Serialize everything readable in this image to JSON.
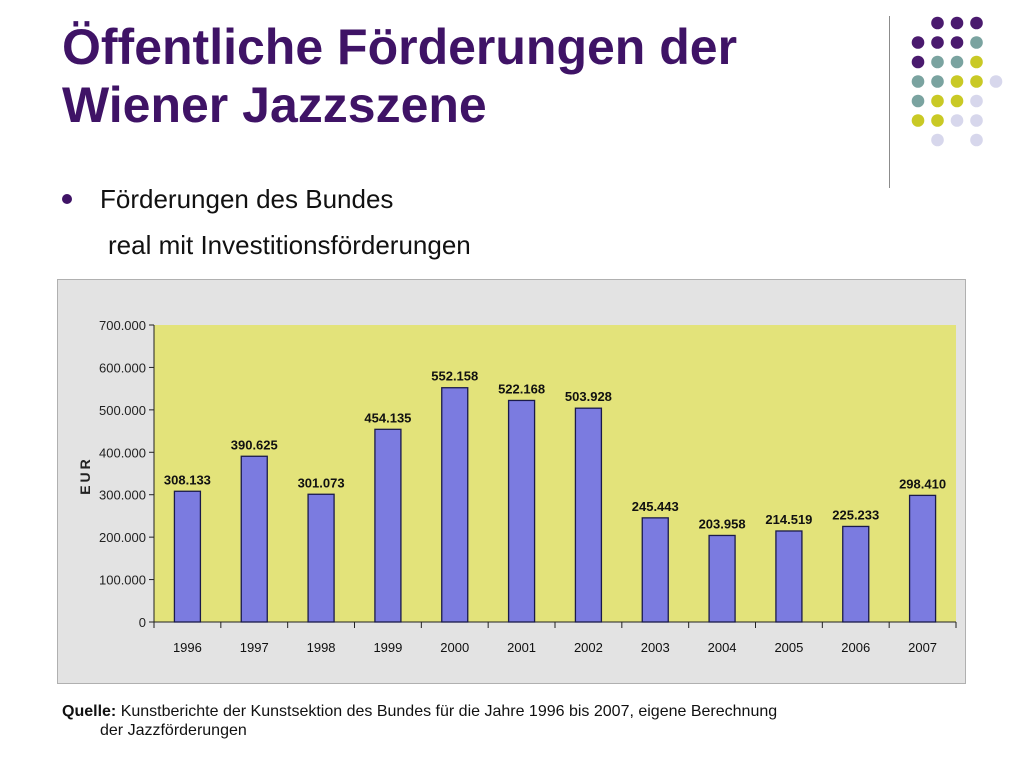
{
  "slide": {
    "title_line1": "Öffentliche Förderungen der",
    "title_line2": "Wiener Jazzszene",
    "bullet": "Förderungen des Bundes",
    "bullet_sub": "real mit Investitionsförderungen",
    "source_label": "Quelle:",
    "source_text": "Kunstberichte der Kunstsektion des Bundes für die Jahre 1996 bis 2007, eigene Berechnung",
    "source_text2": "der Jazzförderungen"
  },
  "colors": {
    "title": "#3f1366",
    "plot_bg": "#e3e37a",
    "bar_fill": "#7b7be0",
    "bar_stroke": "#1a1a4a",
    "dot_purple": "#4a1a6e",
    "dot_teal": "#7aa3a0",
    "dot_yellow": "#c9c925",
    "dot_lavender": "#d7d7ec"
  },
  "chart_data": {
    "type": "bar",
    "categories": [
      "1996",
      "1997",
      "1998",
      "1999",
      "2000",
      "2001",
      "2002",
      "2003",
      "2004",
      "2005",
      "2006",
      "2007"
    ],
    "values": [
      308133,
      390625,
      301073,
      454135,
      552158,
      522168,
      503928,
      245443,
      203958,
      214519,
      225233,
      298410
    ],
    "value_labels": [
      "308.133",
      "390.625",
      "301.073",
      "454.135",
      "552.158",
      "522.168",
      "503.928",
      "245.443",
      "203.958",
      "214.519",
      "225.233",
      "298.410"
    ],
    "yticks": [
      0,
      100000,
      200000,
      300000,
      400000,
      500000,
      600000,
      700000
    ],
    "ytick_labels": [
      "0",
      "100.000",
      "200.000",
      "300.000",
      "400.000",
      "500.000",
      "600.000",
      "700.000"
    ],
    "ylim": [
      0,
      700000
    ],
    "ylabel": "EUR",
    "xlabel": "",
    "title": "",
    "grid": false,
    "legend": false
  }
}
